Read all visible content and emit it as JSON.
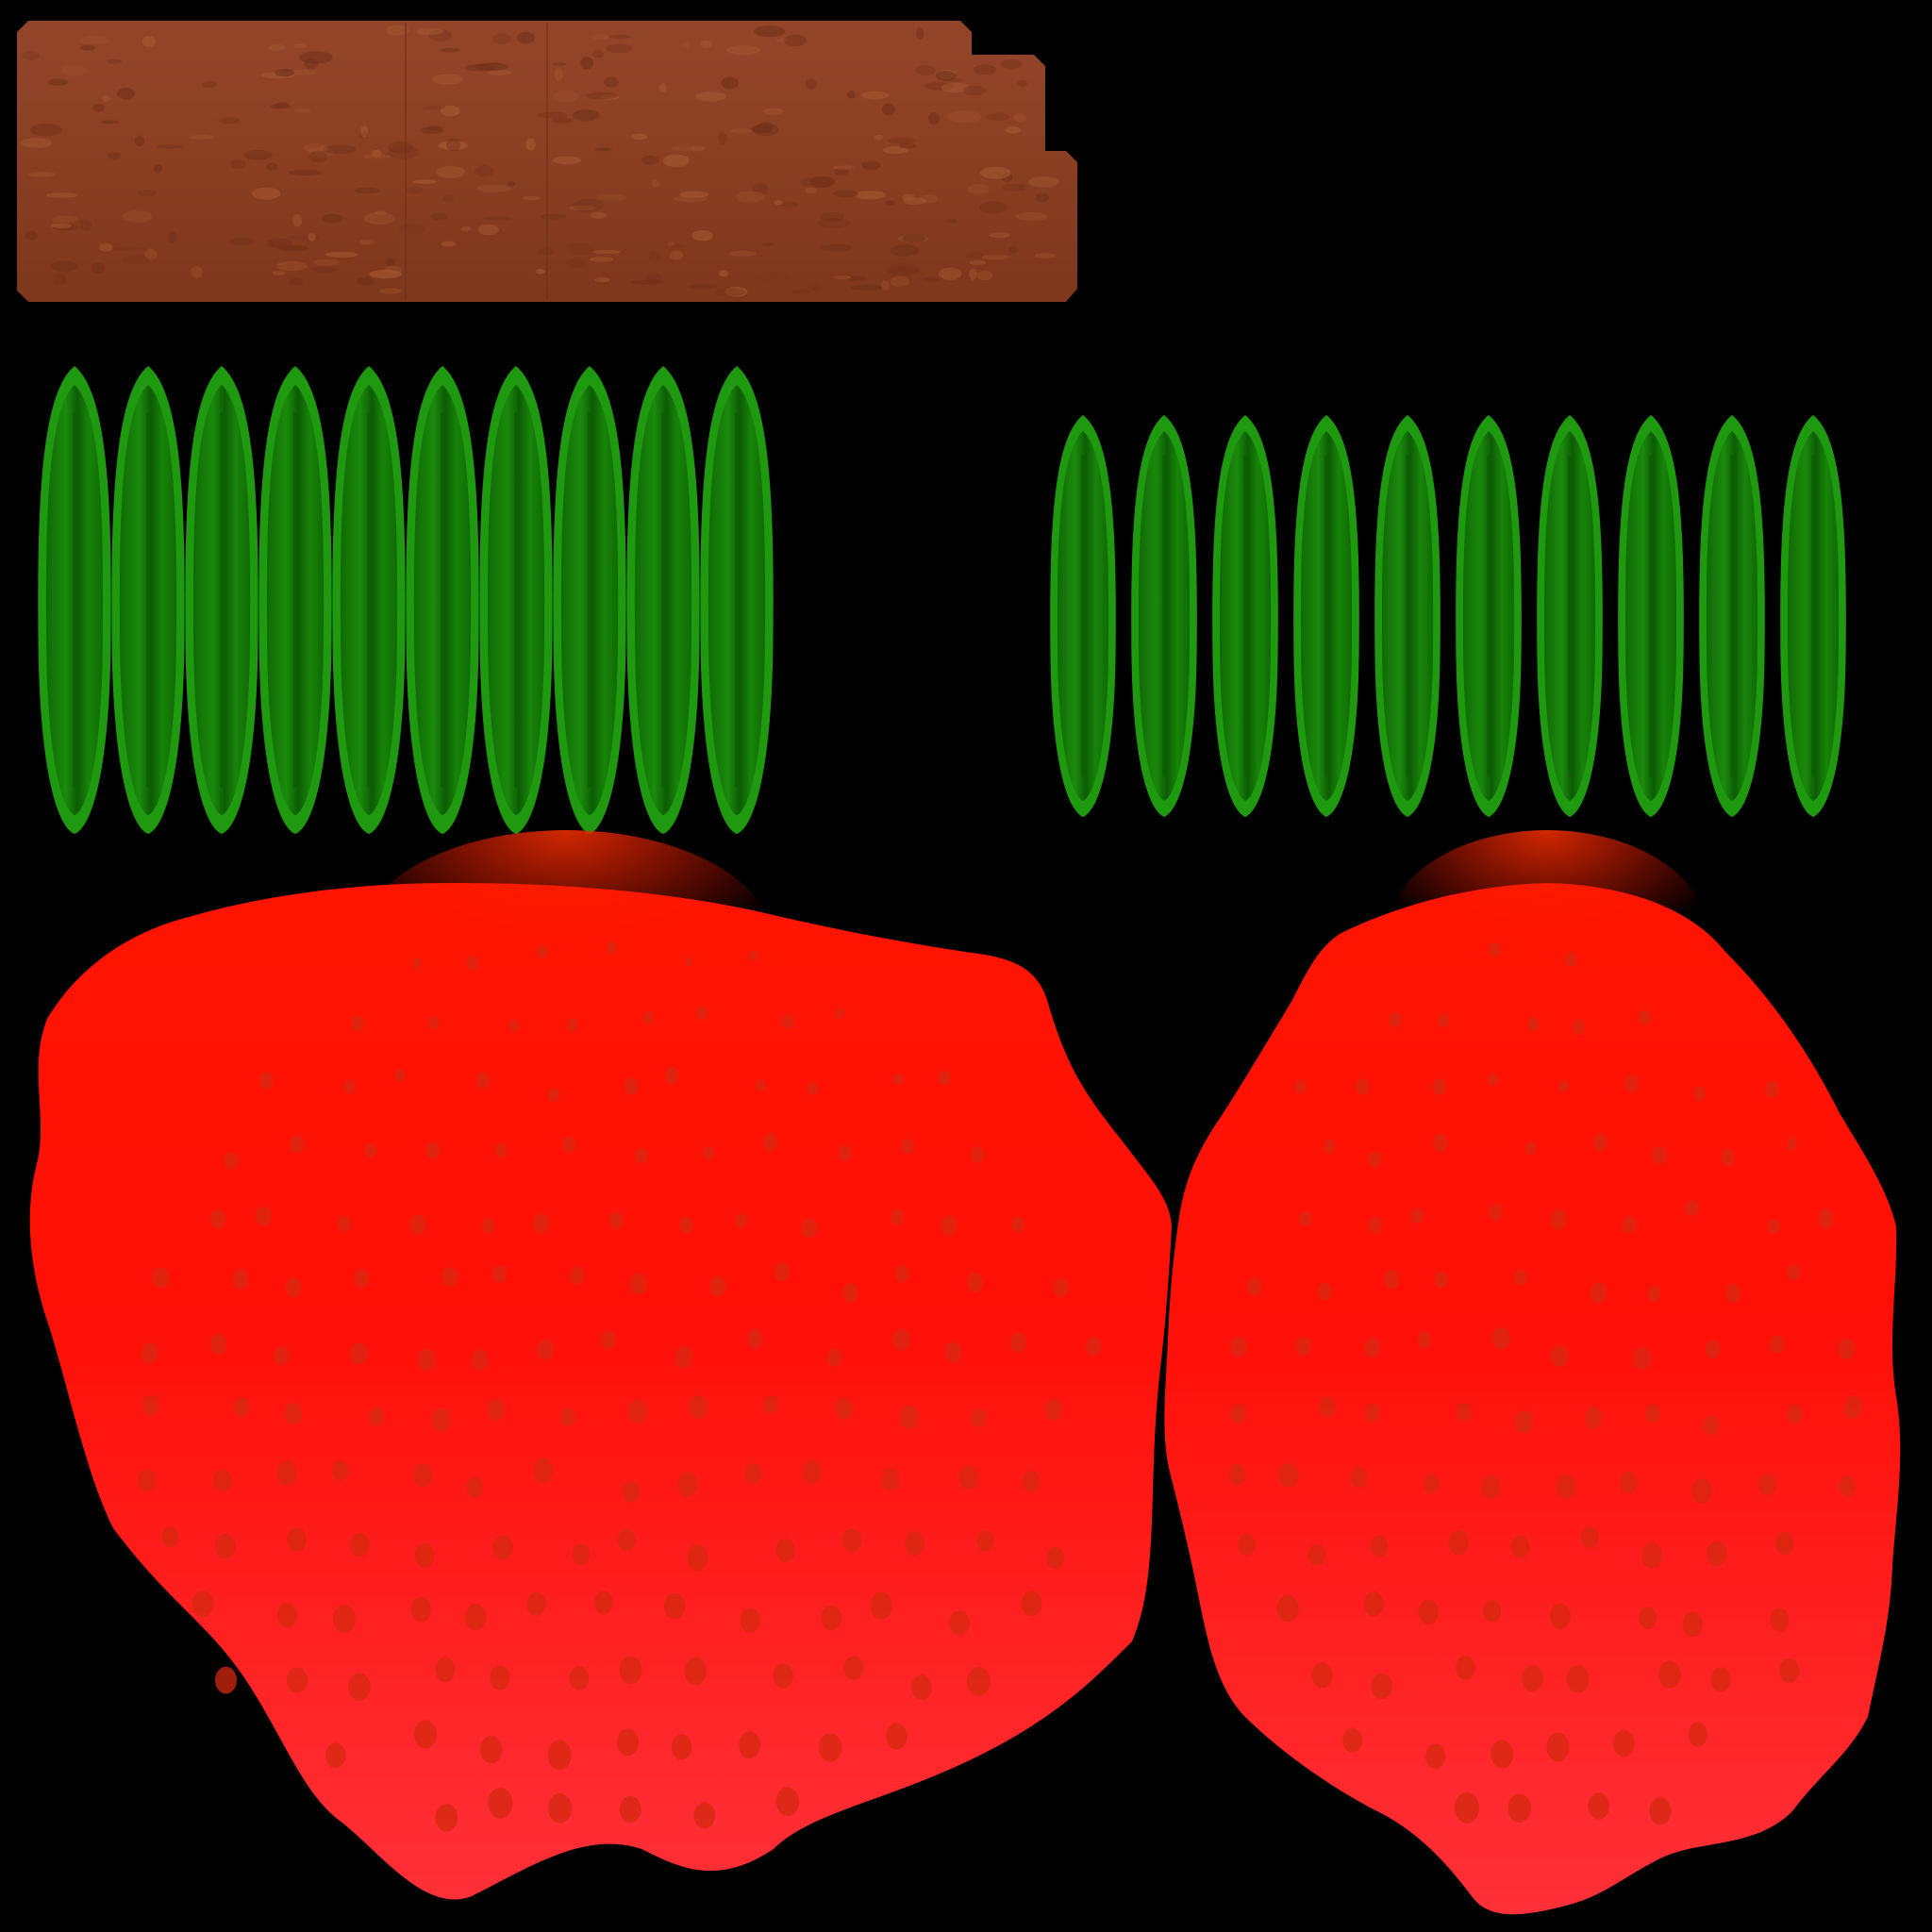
{
  "atlas": {
    "background": "#000000",
    "regions": {
      "stem_bark": {
        "kind": "bark-strip",
        "fill": "#8a3f22",
        "grain_light": "#a55a34",
        "grain_dark": "#6e2f18"
      },
      "sepals_large": {
        "kind": "leaf-row",
        "count": 10,
        "edge": "#1f9a10",
        "inner": "#137a06",
        "vein": "#0d5a04"
      },
      "sepals_small": {
        "kind": "leaf-row",
        "count": 10,
        "edge": "#1f9a10",
        "inner": "#137a06",
        "vein": "#0d5a04"
      },
      "berry_left": {
        "kind": "berry-skin",
        "top": "#ff1a00",
        "bottom": "#ff3038",
        "shade": "#e82a00",
        "seed": "#d42a10"
      },
      "berry_right": {
        "kind": "berry-skin",
        "top": "#ff1a00",
        "bottom": "#ff3038",
        "shade": "#e82a00",
        "seed": "#d42a10"
      }
    }
  }
}
